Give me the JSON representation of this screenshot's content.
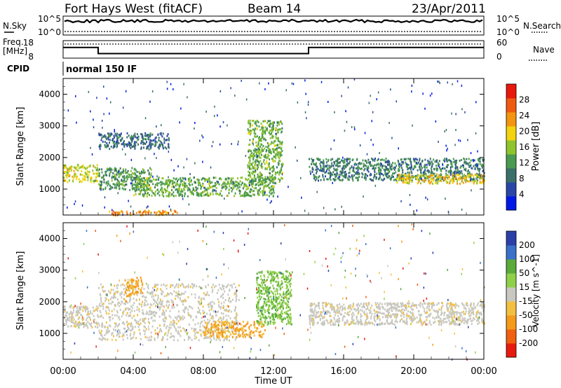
{
  "header": {
    "title": "Fort Hays West (fitACF)",
    "beam": "Beam 14",
    "date": "23/Apr/2011"
  },
  "chart_data": [
    {
      "type": "line",
      "panel": "noise",
      "left_label": "N.Sky",
      "right_label": "N.Search",
      "left_ticks": [
        "10^5",
        "10^0"
      ],
      "right_ticks": [
        "10^5",
        "10^0"
      ]
    },
    {
      "type": "line",
      "panel": "frequency",
      "left_label": [
        "Freq.",
        "[MHz]"
      ],
      "right_label": "Nave",
      "left_ticks": [
        "18",
        "8"
      ],
      "right_ticks": [
        "60",
        "0"
      ],
      "freq_segments": [
        {
          "x": [
            "00:00",
            "02:00"
          ],
          "value": 14.5
        },
        {
          "x": [
            "02:00",
            "14:00"
          ],
          "value": 10.5
        },
        {
          "x": [
            "14:00",
            "24:00"
          ],
          "value": 14.5
        }
      ],
      "nave_approx": 52
    },
    {
      "type": "table",
      "panel": "cpid",
      "label": "CPID",
      "value": "normal 150 IF"
    },
    {
      "type": "heatmap",
      "panel": "power",
      "ylabel": "Slant Range [km]",
      "ylim": [
        180,
        4500
      ],
      "yticks": [
        "1000",
        "2000",
        "3000",
        "4000"
      ],
      "colorbar_label": "Power [dB]",
      "colorbar_ticks": [
        "4",
        "8",
        "12",
        "16",
        "20",
        "24",
        "28"
      ],
      "colorbar_range": [
        0,
        32
      ],
      "colorbar_colors": [
        "#0019e6",
        "#2a47a8",
        "#3b6f6a",
        "#4a9a50",
        "#8fc42c",
        "#f2d30e",
        "#f39512",
        "#f05a10",
        "#e8180c"
      ],
      "features": [
        {
          "x": [
            "00:00",
            "02:00"
          ],
          "y": [
            1250,
            1800
          ],
          "level": 18
        },
        {
          "x": [
            "02:00",
            "05:00"
          ],
          "y": [
            1000,
            1700
          ],
          "level": 12
        },
        {
          "x": [
            "02:00",
            "06:00"
          ],
          "y": [
            2300,
            2800
          ],
          "level": 8
        },
        {
          "x": [
            "04:00",
            "12:00"
          ],
          "y": [
            800,
            1400
          ],
          "level": 14
        },
        {
          "x": [
            "10:30",
            "12:30"
          ],
          "y": [
            1200,
            3200
          ],
          "level": 14
        },
        {
          "x": [
            "14:00",
            "24:00"
          ],
          "y": [
            1300,
            2000
          ],
          "level": 10
        },
        {
          "x": [
            "19:00",
            "24:00"
          ],
          "y": [
            1200,
            1500
          ],
          "level": 20
        },
        {
          "x": [
            "02:30",
            "06:30"
          ],
          "y": [
            200,
            350
          ],
          "level": 24
        }
      ]
    },
    {
      "type": "heatmap",
      "panel": "velocity",
      "ylabel": "Slant Range [km]",
      "xlabel": "Time UT",
      "ylim": [
        180,
        4500
      ],
      "yticks": [
        "1000",
        "2000",
        "3000",
        "4000"
      ],
      "xticks": [
        "00:00",
        "04:00",
        "08:00",
        "12:00",
        "16:00",
        "20:00",
        "00:00"
      ],
      "colorbar_label": "Velocity [m s^-1]",
      "colorbar_ticks": [
        "200",
        "100",
        "50",
        "15",
        "-15",
        "-50",
        "-100",
        "-200"
      ],
      "colorbar_colors": [
        "#2b3fa8",
        "#3a70c8",
        "#5aaa3c",
        "#8fd04a",
        "#c8c8c0",
        "#f2c040",
        "#f59a1a",
        "#f06010",
        "#e81a10"
      ],
      "features": [
        {
          "x": [
            "00:00",
            "02:00"
          ],
          "y": [
            1200,
            1900
          ],
          "velocity": 0
        },
        {
          "x": [
            "02:00",
            "10:00"
          ],
          "y": [
            800,
            2600
          ],
          "velocity": 0
        },
        {
          "x": [
            "03:30",
            "04:30"
          ],
          "y": [
            2200,
            2800
          ],
          "velocity": -60
        },
        {
          "x": [
            "08:00",
            "11:30"
          ],
          "y": [
            900,
            1400
          ],
          "velocity": -50
        },
        {
          "x": [
            "11:00",
            "13:00"
          ],
          "y": [
            1300,
            3000
          ],
          "velocity": 50
        },
        {
          "x": [
            "14:00",
            "24:00"
          ],
          "y": [
            1300,
            2000
          ],
          "velocity": 0
        }
      ]
    }
  ]
}
